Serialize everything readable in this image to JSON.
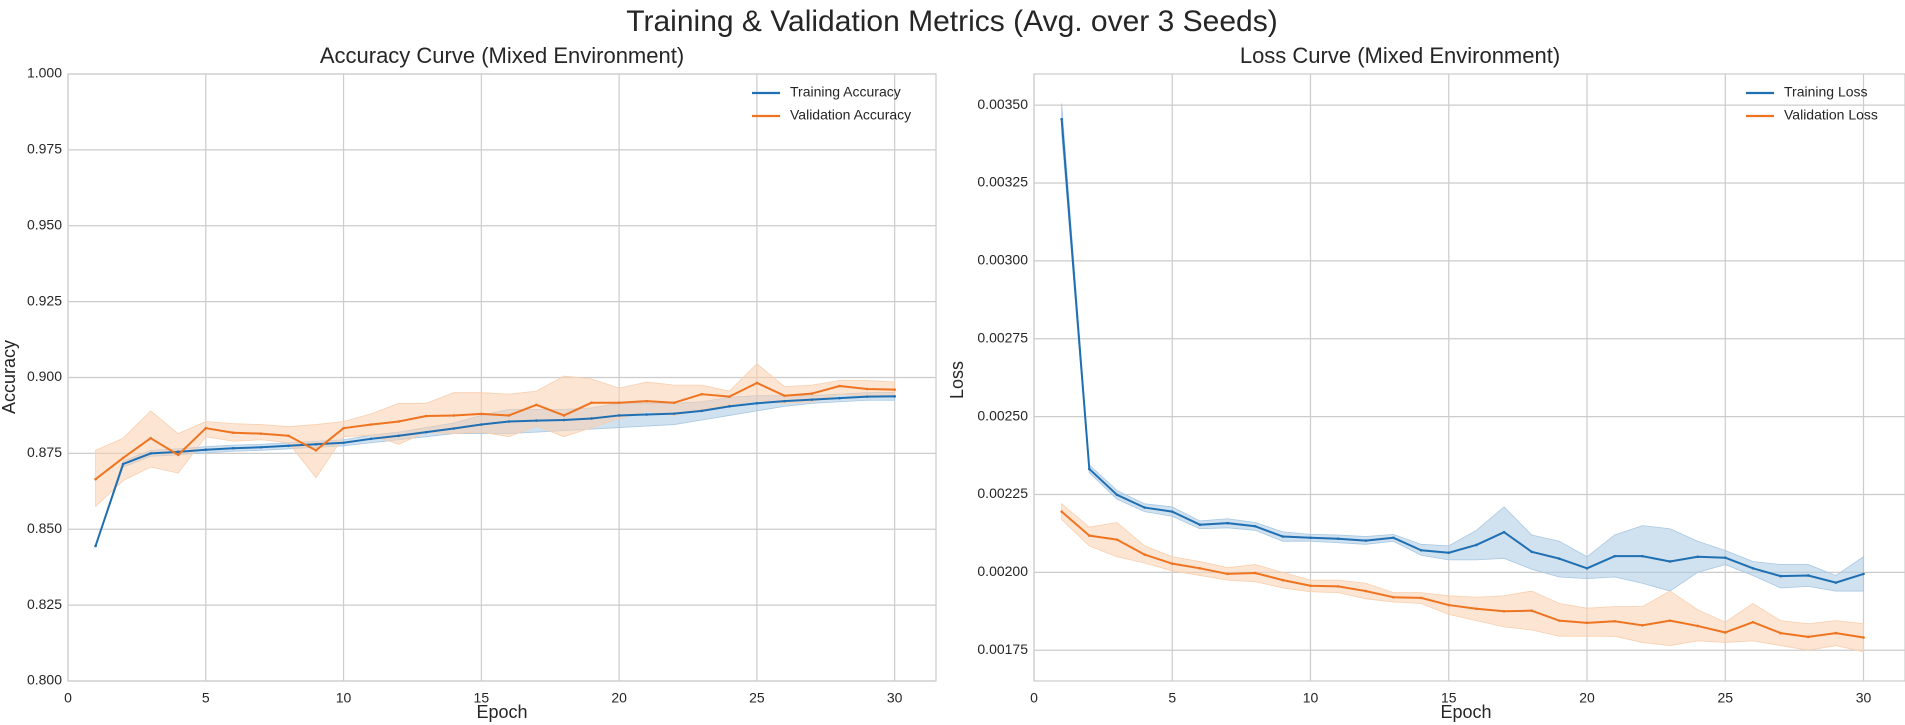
{
  "figure": {
    "suptitle": "Training & Validation Metrics (Avg. over 3 Seeds)"
  },
  "colors": {
    "training": "#1f6fb2",
    "validation": "#ee7421",
    "training_band": "#a9c8e2",
    "validation_band": "#f9cfae"
  },
  "chart_data": [
    {
      "type": "line",
      "title": "Accuracy Curve (Mixed Environment)",
      "xlabel": "Epoch",
      "ylabel": "Accuracy",
      "xlim": [
        0,
        31.5
      ],
      "ylim": [
        0.8,
        1.0
      ],
      "xticks": [
        0,
        5,
        10,
        15,
        20,
        25,
        30
      ],
      "yticks": [
        0.8,
        0.825,
        0.85,
        0.875,
        0.9,
        0.925,
        0.95,
        0.975,
        1.0
      ],
      "ytick_labels": [
        "0.800",
        "0.825",
        "0.850",
        "0.875",
        "0.900",
        "0.925",
        "0.950",
        "0.975",
        "1.000"
      ],
      "grid": true,
      "legend_position": "top-right",
      "x": [
        1,
        2,
        3,
        4,
        5,
        6,
        7,
        8,
        9,
        10,
        11,
        12,
        13,
        14,
        15,
        16,
        17,
        18,
        19,
        20,
        21,
        22,
        23,
        24,
        25,
        26,
        27,
        28,
        29,
        30
      ],
      "series": [
        {
          "name": "Training Accuracy",
          "color_key": "training",
          "values": [
            0.8445,
            0.8715,
            0.875,
            0.8755,
            0.8762,
            0.8767,
            0.877,
            0.8775,
            0.878,
            0.8785,
            0.8798,
            0.8808,
            0.882,
            0.8832,
            0.8845,
            0.8855,
            0.8858,
            0.886,
            0.8865,
            0.8875,
            0.8878,
            0.8881,
            0.889,
            0.8905,
            0.8915,
            0.8922,
            0.8927,
            0.8932,
            0.8937,
            0.8938
          ],
          "lower": [
            0.8445,
            0.8705,
            0.874,
            0.8745,
            0.8752,
            0.8757,
            0.876,
            0.8765,
            0.877,
            0.8775,
            0.8785,
            0.8795,
            0.8805,
            0.8815,
            0.8815,
            0.8815,
            0.882,
            0.8825,
            0.883,
            0.8835,
            0.884,
            0.8845,
            0.886,
            0.8875,
            0.889,
            0.8905,
            0.8915,
            0.892,
            0.8925,
            0.8925
          ],
          "upper": [
            0.8445,
            0.8725,
            0.876,
            0.8765,
            0.8772,
            0.8777,
            0.878,
            0.8785,
            0.879,
            0.8795,
            0.881,
            0.882,
            0.8835,
            0.885,
            0.8875,
            0.8895,
            0.8895,
            0.8895,
            0.89,
            0.8915,
            0.8915,
            0.8915,
            0.892,
            0.8935,
            0.894,
            0.894,
            0.894,
            0.8945,
            0.895,
            0.8951
          ]
        },
        {
          "name": "Validation Accuracy",
          "color_key": "validation",
          "values": [
            0.8665,
            0.8735,
            0.88,
            0.8745,
            0.8833,
            0.8818,
            0.8815,
            0.8808,
            0.876,
            0.8833,
            0.8845,
            0.8855,
            0.8873,
            0.8875,
            0.888,
            0.8875,
            0.891,
            0.8875,
            0.8917,
            0.8917,
            0.8922,
            0.8917,
            0.8945,
            0.8937,
            0.8982,
            0.894,
            0.8947,
            0.8972,
            0.8962,
            0.896
          ],
          "lower": [
            0.8575,
            0.866,
            0.8705,
            0.8685,
            0.8805,
            0.879,
            0.8795,
            0.8785,
            0.867,
            0.8805,
            0.881,
            0.878,
            0.882,
            0.8815,
            0.882,
            0.8805,
            0.884,
            0.8805,
            0.8835,
            0.8865,
            0.889,
            0.8875,
            0.8895,
            0.891,
            0.8925,
            0.8915,
            0.892,
            0.8945,
            0.894,
            0.8935
          ],
          "upper": [
            0.876,
            0.88,
            0.889,
            0.8815,
            0.8855,
            0.8848,
            0.8845,
            0.8838,
            0.8845,
            0.8855,
            0.888,
            0.8915,
            0.8915,
            0.895,
            0.895,
            0.8945,
            0.8955,
            0.9005,
            0.8995,
            0.8965,
            0.8985,
            0.8975,
            0.8975,
            0.8955,
            0.9045,
            0.897,
            0.8975,
            0.899,
            0.899,
            0.8985
          ]
        }
      ]
    },
    {
      "type": "line",
      "title": "Loss Curve (Mixed Environment)",
      "xlabel": "Epoch",
      "ylabel": "Loss",
      "xlim": [
        0,
        31.5
      ],
      "ylim": [
        0.0016512,
        0.0036
      ],
      "xticks": [
        0,
        5,
        10,
        15,
        20,
        25,
        30
      ],
      "yticks": [
        0.00175,
        0.002,
        0.00225,
        0.0025,
        0.00275,
        0.003,
        0.00325,
        0.0035
      ],
      "ytick_labels": [
        "0.00175",
        "0.00200",
        "0.00225",
        "0.00250",
        "0.00275",
        "0.00300",
        "0.00325",
        "0.00350"
      ],
      "grid": true,
      "legend_position": "top-right",
      "x": [
        1,
        2,
        3,
        4,
        5,
        6,
        7,
        8,
        9,
        10,
        11,
        12,
        13,
        14,
        15,
        16,
        17,
        18,
        19,
        20,
        21,
        22,
        23,
        24,
        25,
        26,
        27,
        28,
        29,
        30
      ],
      "series": [
        {
          "name": "Training Loss",
          "color_key": "training",
          "values": [
            0.003455,
            0.002332,
            0.002249,
            0.002208,
            0.002195,
            0.002153,
            0.002158,
            0.002148,
            0.002115,
            0.002111,
            0.002108,
            0.002102,
            0.002111,
            0.002071,
            0.002063,
            0.002088,
            0.002129,
            0.002066,
            0.002044,
            0.002013,
            0.002052,
            0.002052,
            0.002035,
            0.00205,
            0.002047,
            0.002013,
            0.001988,
            0.00199,
            0.001967,
            0.001995
          ],
          "lower": [
            0.00341,
            0.00232,
            0.002235,
            0.002195,
            0.00218,
            0.00214,
            0.002143,
            0.002135,
            0.0021,
            0.0021,
            0.002095,
            0.00209,
            0.0021,
            0.002055,
            0.00204,
            0.00204,
            0.002045,
            0.00201,
            0.001985,
            0.00198,
            0.001985,
            0.001965,
            0.00194,
            0.002,
            0.002025,
            0.00199,
            0.00195,
            0.001955,
            0.00194,
            0.00194
          ],
          "upper": [
            0.003505,
            0.002345,
            0.002263,
            0.00222,
            0.00221,
            0.002165,
            0.002172,
            0.00216,
            0.00213,
            0.002122,
            0.00212,
            0.002115,
            0.002122,
            0.00209,
            0.002085,
            0.002135,
            0.00221,
            0.00212,
            0.0021,
            0.00205,
            0.00212,
            0.00215,
            0.00214,
            0.0021,
            0.00207,
            0.002035,
            0.002025,
            0.002025,
            0.00199,
            0.00205
          ]
        },
        {
          "name": "Validation Loss",
          "color_key": "validation",
          "values": [
            0.002195,
            0.002118,
            0.002105,
            0.002057,
            0.002028,
            0.002013,
            0.001995,
            0.001998,
            0.001975,
            0.001957,
            0.001955,
            0.00194,
            0.00192,
            0.001918,
            0.001895,
            0.001883,
            0.001875,
            0.001877,
            0.001845,
            0.001838,
            0.001843,
            0.00183,
            0.001845,
            0.001828,
            0.001807,
            0.00184,
            0.001805,
            0.001793,
            0.001805,
            0.001791
          ],
          "lower": [
            0.00217,
            0.002085,
            0.00205,
            0.00203,
            0.002005,
            0.00199,
            0.001975,
            0.00197,
            0.00195,
            0.001938,
            0.001935,
            0.001915,
            0.001905,
            0.0019,
            0.001865,
            0.001845,
            0.001825,
            0.001815,
            0.001795,
            0.001795,
            0.001795,
            0.001775,
            0.001765,
            0.00178,
            0.001775,
            0.00178,
            0.001765,
            0.00175,
            0.001765,
            0.001745
          ],
          "upper": [
            0.00222,
            0.002145,
            0.00216,
            0.002085,
            0.00205,
            0.002035,
            0.002015,
            0.002025,
            0.002,
            0.001975,
            0.001975,
            0.001965,
            0.001935,
            0.001935,
            0.001925,
            0.00192,
            0.001925,
            0.00194,
            0.0019,
            0.001885,
            0.00189,
            0.00189,
            0.00194,
            0.00188,
            0.00184,
            0.0019,
            0.001845,
            0.001835,
            0.001845,
            0.001835
          ]
        }
      ]
    }
  ]
}
